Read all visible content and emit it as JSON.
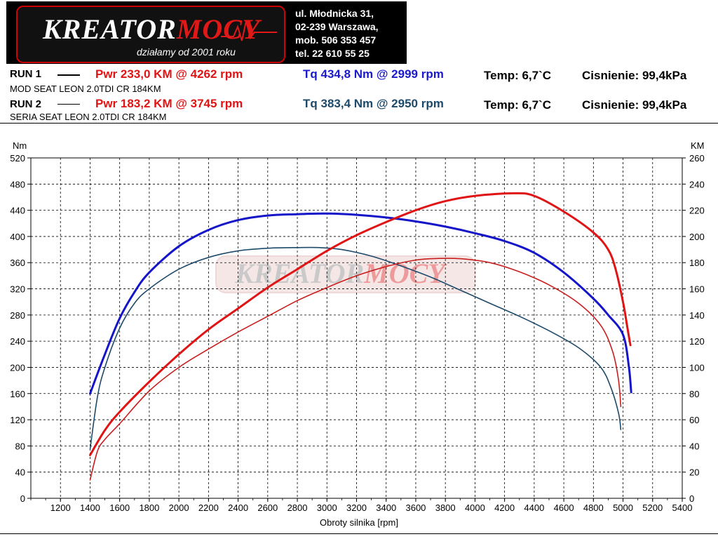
{
  "header": {
    "logo": {
      "word_main": "KREATOR",
      "word_accent": "MOCY",
      "tagline": "działamy od 2001 roku"
    },
    "address": [
      "ul. Młodnicka 31,",
      "02-239  Warszawa,",
      "mob.  506 353 457",
      "tel.  22 610 55 25"
    ]
  },
  "runs": [
    {
      "label": "RUN 1",
      "pwr": "Pwr  233,0 KM @ 4262 rpm",
      "tq": "Tq 434,8 Nm @ 2999 rpm",
      "temp": "Temp: 6,7`C",
      "pressure": "Cisnienie: 99,4kPa",
      "desc": "MOD SEAT LEON 2.0TDI CR 184KM"
    },
    {
      "label": "RUN 2",
      "pwr": "Pwr  183,2 KM @ 3745 rpm",
      "tq": "Tq 383,4 Nm @ 2950 rpm",
      "temp": "Temp: 6,7`C",
      "pressure": "Cisnienie: 99,4kPa",
      "desc": "SERIA SEAT LEON 2.0TDI CR 184KM"
    }
  ],
  "colors": {
    "run1_power": "#e01414",
    "run2_power": "#c81e1e",
    "run1_torque": "#1414c8",
    "run2_torque": "#1d4a6a"
  },
  "chart_data": {
    "type": "line",
    "xlabel": "Obroty silnika [rpm]",
    "ylabel_left": "Nm",
    "ylabel_right": "KM",
    "xlim": [
      1000,
      5400
    ],
    "ylim_left": [
      0,
      520
    ],
    "ylim_right": [
      0,
      260
    ],
    "x_ticks": [
      1200,
      1400,
      1600,
      1800,
      2000,
      2200,
      2400,
      2600,
      2800,
      3000,
      3200,
      3400,
      3600,
      3800,
      4000,
      4200,
      4400,
      4600,
      4800,
      5000,
      5200,
      5400
    ],
    "y_ticks_left": [
      0,
      40,
      80,
      120,
      160,
      200,
      240,
      280,
      320,
      360,
      400,
      440,
      480,
      520
    ],
    "y_ticks_right": [
      0,
      20,
      40,
      60,
      80,
      100,
      120,
      140,
      160,
      180,
      200,
      220,
      240,
      260
    ],
    "grid": true,
    "watermark": {
      "word_main": "KREATOR",
      "word_accent": "MOCY"
    },
    "series": [
      {
        "name": "RUN 1",
        "quantity": "torque",
        "axis": "left",
        "color": "#1414c8",
        "width": 3,
        "x": [
          1400,
          1500,
          1600,
          1700,
          1800,
          2000,
          2200,
          2400,
          2600,
          2800,
          3000,
          3200,
          3400,
          3600,
          3800,
          4000,
          4200,
          4400,
          4600,
          4800,
          4900,
          5000,
          5040,
          5055
        ],
        "y": [
          160,
          220,
          275,
          315,
          345,
          385,
          410,
          425,
          432,
          434,
          435,
          433,
          429,
          423,
          415,
          405,
          393,
          375,
          345,
          305,
          280,
          250,
          200,
          162
        ]
      },
      {
        "name": "RUN 2",
        "quantity": "torque",
        "axis": "left",
        "color": "#1d4a6a",
        "width": 1.6,
        "x": [
          1400,
          1450,
          1500,
          1600,
          1700,
          1800,
          2000,
          2200,
          2400,
          2600,
          2800,
          2950,
          3100,
          3300,
          3500,
          3700,
          3900,
          4100,
          4300,
          4500,
          4700,
          4850,
          4920,
          4970,
          4985
        ],
        "y": [
          75,
          155,
          200,
          260,
          298,
          320,
          350,
          368,
          378,
          382,
          383,
          383,
          380,
          370,
          355,
          338,
          318,
          298,
          278,
          256,
          230,
          200,
          168,
          130,
          105
        ]
      },
      {
        "name": "RUN 1",
        "quantity": "power",
        "axis": "right",
        "color": "#e01414",
        "width": 3,
        "x": [
          1400,
          1500,
          1600,
          1800,
          2000,
          2200,
          2400,
          2600,
          2800,
          3000,
          3200,
          3400,
          3600,
          3800,
          4000,
          4262,
          4400,
          4600,
          4800,
          4900,
          4950,
          5000,
          5030,
          5050
        ],
        "y": [
          33,
          52,
          66,
          89,
          110,
          129,
          145,
          161,
          175,
          189,
          201,
          211,
          220,
          227,
          231,
          233,
          231,
          219,
          203,
          190,
          175,
          150,
          130,
          117
        ]
      },
      {
        "name": "RUN 2",
        "quantity": "power",
        "axis": "right",
        "color": "#c81e1e",
        "width": 1.6,
        "x": [
          1400,
          1450,
          1500,
          1600,
          1800,
          2000,
          2200,
          2400,
          2600,
          2800,
          3000,
          3200,
          3400,
          3600,
          3745,
          3900,
          4100,
          4300,
          4500,
          4700,
          4850,
          4930,
          4970,
          4985
        ],
        "y": [
          14,
          36,
          45,
          57,
          82,
          100,
          114,
          127,
          139,
          151,
          161,
          170,
          177,
          182,
          183.2,
          183,
          180,
          173,
          163,
          149,
          132,
          112,
          90,
          70
        ]
      }
    ]
  }
}
